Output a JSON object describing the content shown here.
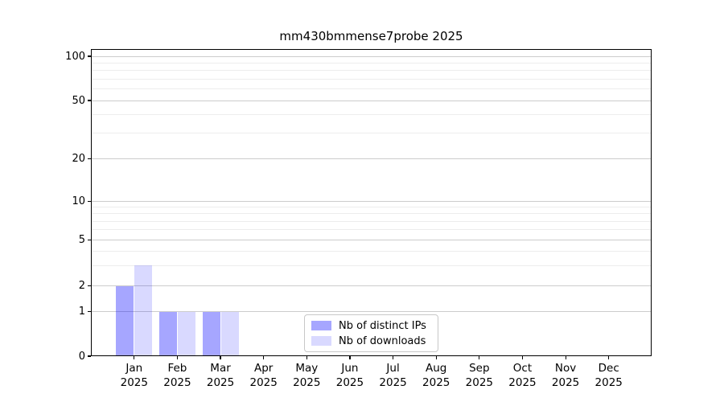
{
  "chart_data": {
    "type": "bar",
    "title": "mm430bmmense7probe 2025",
    "categories": [
      "Jan\n2025",
      "Feb\n2025",
      "Mar\n2025",
      "Apr\n2025",
      "May\n2025",
      "Jun\n2025",
      "Jul\n2025",
      "Aug\n2025",
      "Sep\n2025",
      "Oct\n2025",
      "Nov\n2025",
      "Dec\n2025"
    ],
    "series": [
      {
        "name": "Nb of distinct IPs",
        "color": "#0000ff59",
        "values": [
          2,
          1,
          1,
          0,
          0,
          0,
          0,
          0,
          0,
          0,
          0,
          0
        ]
      },
      {
        "name": "Nb of downloads",
        "color": "#0000ff26",
        "values": [
          3,
          1,
          1,
          0,
          0,
          0,
          0,
          0,
          0,
          0,
          0,
          0
        ]
      }
    ],
    "xlabel": "",
    "ylabel": "",
    "yscale": "log-like-with-zero",
    "ylim": [
      0,
      100
    ],
    "y_major_ticks": [
      0,
      1,
      2,
      5,
      10,
      20,
      50,
      100
    ],
    "y_minor_gridlines": [
      3,
      4,
      6,
      7,
      8,
      9,
      30,
      40,
      60,
      70,
      80,
      90
    ],
    "grid": true,
    "legend_position": "lower center"
  },
  "style": {
    "background": "#ffffff",
    "axis_color": "#000000",
    "text_color": "#000000",
    "major_grid_color": "#cccccc",
    "minor_grid_color": "#ededed",
    "legend_border_color": "#c8c8c8"
  }
}
